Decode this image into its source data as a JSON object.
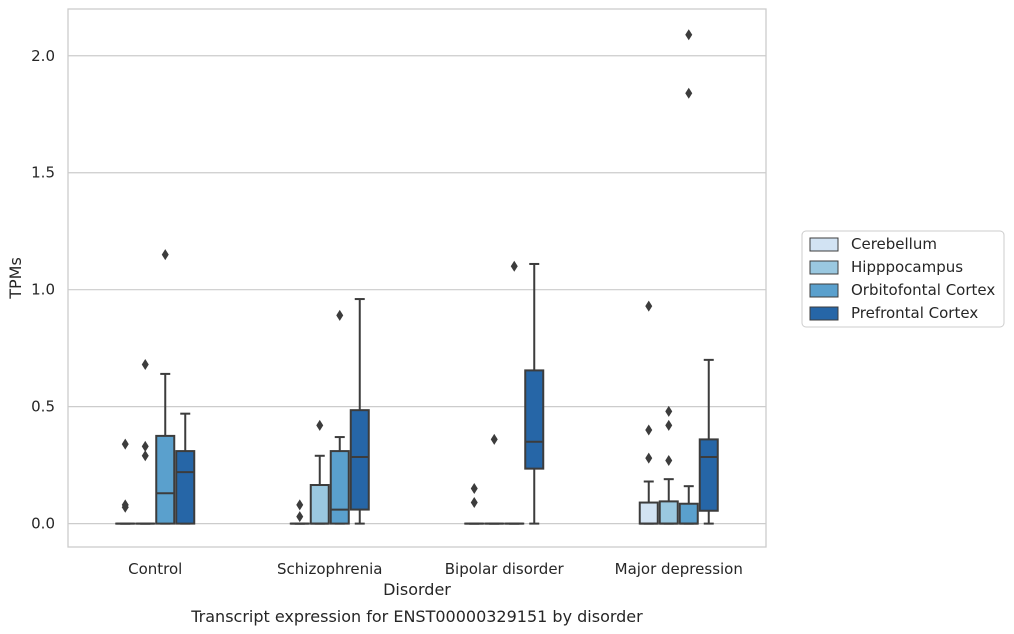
{
  "chart_data": {
    "type": "box",
    "caption": "Transcript expression for ENST00000329151 by disorder",
    "xlabel": "Disorder",
    "ylabel": "TPMs",
    "ylim": [
      -0.1,
      2.2
    ],
    "yticks": [
      0.0,
      0.5,
      1.0,
      1.5,
      2.0
    ],
    "ytick_labels": [
      "0.0",
      "0.5",
      "1.0",
      "1.5",
      "2.0"
    ],
    "grid": true,
    "legend_position": "right",
    "categories": [
      "Control",
      "Schizophrenia",
      "Bipolar disorder",
      "Major depression"
    ],
    "series": [
      {
        "name": "Cerebellum",
        "color": "#d2e3f3",
        "boxes": [
          {
            "min": 0,
            "q1": 0,
            "median": 0,
            "q3": 0,
            "max": 0,
            "outliers": [
              0.34,
              0.08,
              0.07
            ]
          },
          {
            "min": 0,
            "q1": 0,
            "median": 0,
            "q3": 0,
            "max": 0,
            "outliers": [
              0.08,
              0.03
            ]
          },
          {
            "min": 0,
            "q1": 0,
            "median": 0,
            "q3": 0,
            "max": 0,
            "outliers": [
              0.15,
              0.09
            ]
          },
          {
            "min": 0,
            "q1": 0,
            "median": 0,
            "q3": 0.09,
            "max": 0.18,
            "outliers": [
              0.93,
              0.4,
              0.28
            ]
          }
        ]
      },
      {
        "name": "Hipppocampus",
        "color": "#9ac8e0",
        "boxes": [
          {
            "min": 0,
            "q1": 0,
            "median": 0,
            "q3": 0,
            "max": 0,
            "outliers": [
              0.68,
              0.33,
              0.29
            ]
          },
          {
            "min": 0,
            "q1": 0,
            "median": 0,
            "q3": 0.165,
            "max": 0.29,
            "outliers": [
              0.42
            ]
          },
          {
            "min": 0,
            "q1": 0,
            "median": 0,
            "q3": 0,
            "max": 0,
            "outliers": [
              0.36
            ]
          },
          {
            "min": 0,
            "q1": 0,
            "median": 0,
            "q3": 0.095,
            "max": 0.19,
            "outliers": [
              0.48,
              0.42,
              0.27
            ]
          }
        ]
      },
      {
        "name": "Orbitofontal Cortex",
        "color": "#5aa0cd",
        "boxes": [
          {
            "min": 0,
            "q1": 0,
            "median": 0.13,
            "q3": 0.375,
            "max": 0.64,
            "outliers": [
              1.15
            ]
          },
          {
            "min": 0,
            "q1": 0,
            "median": 0.06,
            "q3": 0.31,
            "max": 0.37,
            "outliers": [
              0.89
            ]
          },
          {
            "min": 0,
            "q1": 0,
            "median": 0,
            "q3": 0,
            "max": 0,
            "outliers": [
              1.1
            ]
          },
          {
            "min": 0,
            "q1": 0,
            "median": 0,
            "q3": 0.085,
            "max": 0.16,
            "outliers": [
              2.09,
              1.84
            ]
          }
        ]
      },
      {
        "name": "Prefrontal Cortex",
        "color": "#2666a7",
        "boxes": [
          {
            "min": 0,
            "q1": 0,
            "median": 0.22,
            "q3": 0.31,
            "max": 0.47,
            "outliers": []
          },
          {
            "min": 0,
            "q1": 0.06,
            "median": 0.285,
            "q3": 0.485,
            "max": 0.96,
            "outliers": []
          },
          {
            "min": 0,
            "q1": 0.235,
            "median": 0.35,
            "q3": 0.655,
            "max": 1.11,
            "outliers": []
          },
          {
            "min": 0,
            "q1": 0.055,
            "median": 0.285,
            "q3": 0.36,
            "max": 0.7,
            "outliers": []
          }
        ]
      }
    ]
  }
}
